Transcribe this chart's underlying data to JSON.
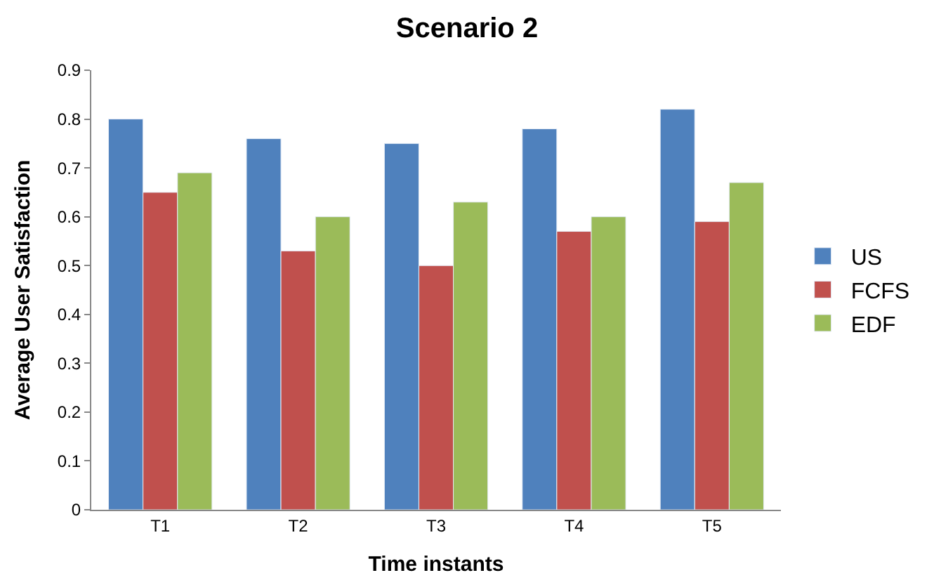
{
  "chart_data": {
    "type": "bar",
    "title": "Scenario 2",
    "xlabel": "Time instants",
    "ylabel": "Average User Satisfaction",
    "categories": [
      "T1",
      "T2",
      "T3",
      "T4",
      "T5"
    ],
    "series": [
      {
        "name": "US",
        "color": "#4f81bd",
        "values": [
          0.8,
          0.76,
          0.75,
          0.78,
          0.82
        ]
      },
      {
        "name": "FCFS",
        "color": "#c0504d",
        "values": [
          0.65,
          0.53,
          0.5,
          0.57,
          0.59
        ]
      },
      {
        "name": "EDF",
        "color": "#9bbb59",
        "values": [
          0.69,
          0.6,
          0.63,
          0.6,
          0.67
        ]
      }
    ],
    "ylim": [
      0,
      0.9
    ],
    "yticks": [
      {
        "value": 0,
        "label": "0"
      },
      0.1,
      0.2,
      0.3,
      0.4,
      0.5,
      0.6,
      0.7,
      0.8,
      0.9
    ],
    "legend": "right"
  }
}
